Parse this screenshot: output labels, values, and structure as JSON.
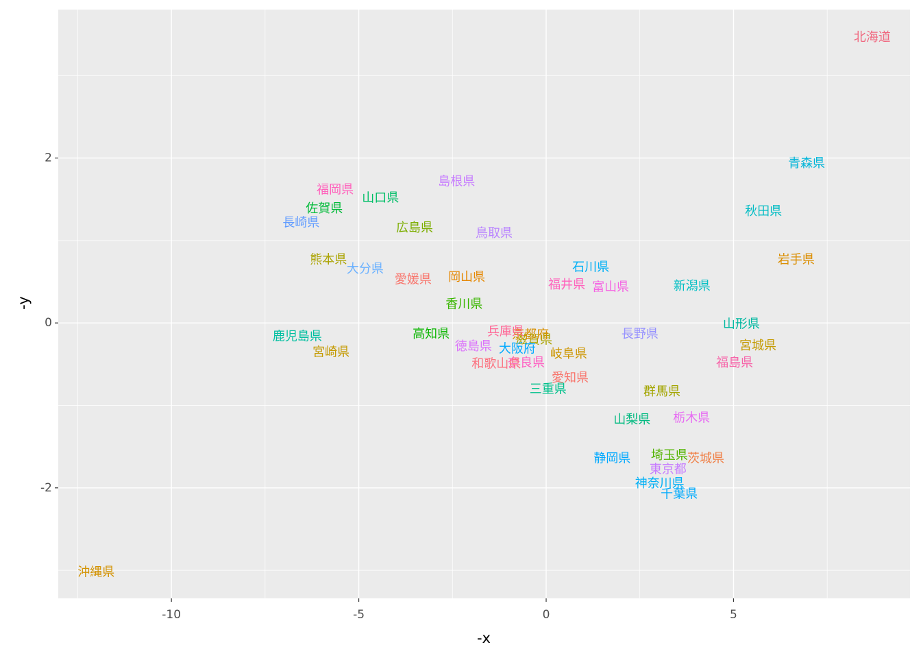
{
  "chart_data": {
    "type": "scatter",
    "x_label": "-x",
    "y_label": "-y",
    "xlim": [
      -13.02,
      9.71
    ],
    "ylim": [
      -3.34,
      3.8
    ],
    "xticks": [
      -10,
      -5,
      0,
      5
    ],
    "yticks": [
      -2,
      0,
      2
    ],
    "grid": true,
    "labels": [
      "北海道",
      "青森県",
      "秋田県",
      "岩手県",
      "宮城県",
      "山形県",
      "福島県",
      "茨城県",
      "栃木県",
      "群馬県",
      "埼玉県",
      "千葉県",
      "東京都",
      "神奈川県",
      "新潟県",
      "富山県",
      "石川県",
      "福井県",
      "山梨県",
      "長野県",
      "岐阜県",
      "静岡県",
      "愛知県",
      "三重県",
      "滋賀県",
      "京都府",
      "大阪府",
      "兵庫県",
      "奈良県",
      "和歌山県",
      "鳥取県",
      "島根県",
      "岡山県",
      "広島県",
      "山口県",
      "徳島県",
      "香川県",
      "愛媛県",
      "高知県",
      "福岡県",
      "佐賀県",
      "長崎県",
      "熊本県",
      "大分県",
      "宮崎県",
      "鹿児島県",
      "沖縄県"
    ],
    "x": [
      8.7,
      6.95,
      5.8,
      6.67,
      5.65,
      5.21,
      5.03,
      4.26,
      3.88,
      3.09,
      3.29,
      3.55,
      3.25,
      3.03,
      3.89,
      1.72,
      1.19,
      0.55,
      2.29,
      2.5,
      0.6,
      1.76,
      0.64,
      0.05,
      -0.33,
      -0.42,
      -0.77,
      -1.08,
      -0.53,
      -1.33,
      -1.39,
      -2.39,
      -2.12,
      -3.51,
      -4.42,
      -1.94,
      -2.19,
      -3.55,
      -3.07,
      -5.63,
      -5.92,
      -6.54,
      -5.81,
      -4.83,
      -5.74,
      -6.64,
      -12.01
    ],
    "y": [
      3.46,
      1.93,
      1.35,
      0.76,
      -0.28,
      -0.02,
      -0.49,
      -1.65,
      -1.16,
      -0.84,
      -1.61,
      -2.08,
      -1.78,
      -1.95,
      0.44,
      0.43,
      0.67,
      0.46,
      -1.18,
      -0.14,
      -0.38,
      -1.65,
      -0.67,
      -0.81,
      -0.21,
      -0.15,
      -0.32,
      -0.11,
      -0.49,
      -0.5,
      1.08,
      1.71,
      0.55,
      1.15,
      1.51,
      -0.29,
      0.22,
      0.52,
      -0.14,
      1.61,
      1.38,
      1.21,
      0.76,
      0.65,
      -0.36,
      -0.17,
      -3.03
    ],
    "colors": [
      "#F0677F",
      "#00B4D8",
      "#00BCC4",
      "#DB8E00",
      "#C49A00",
      "#00B8A0",
      "#F763A8",
      "#F07F45",
      "#E76BF3",
      "#A3A500",
      "#53B400",
      "#00ABFD",
      "#C77CFF",
      "#00B0F6",
      "#00BFC4",
      "#F564E3",
      "#00B0F6",
      "#FF62BC",
      "#00BA80",
      "#9590FF",
      "#CD9600",
      "#00A9FF",
      "#F8766D",
      "#00C08B",
      "#ABA300",
      "#D89000",
      "#00A9FF",
      "#FF6A98",
      "#FF61C3",
      "#FC717F",
      "#B983FF",
      "#C77CFF",
      "#E58700",
      "#7CAE00",
      "#00BE67",
      "#DB72FB",
      "#39B600",
      "#F8766D",
      "#0CB702",
      "#FF62BC",
      "#00BA38",
      "#619CFF",
      "#ABA300",
      "#6BB1FF",
      "#C49A00",
      "#00BFA0",
      "#D39200"
    ]
  }
}
